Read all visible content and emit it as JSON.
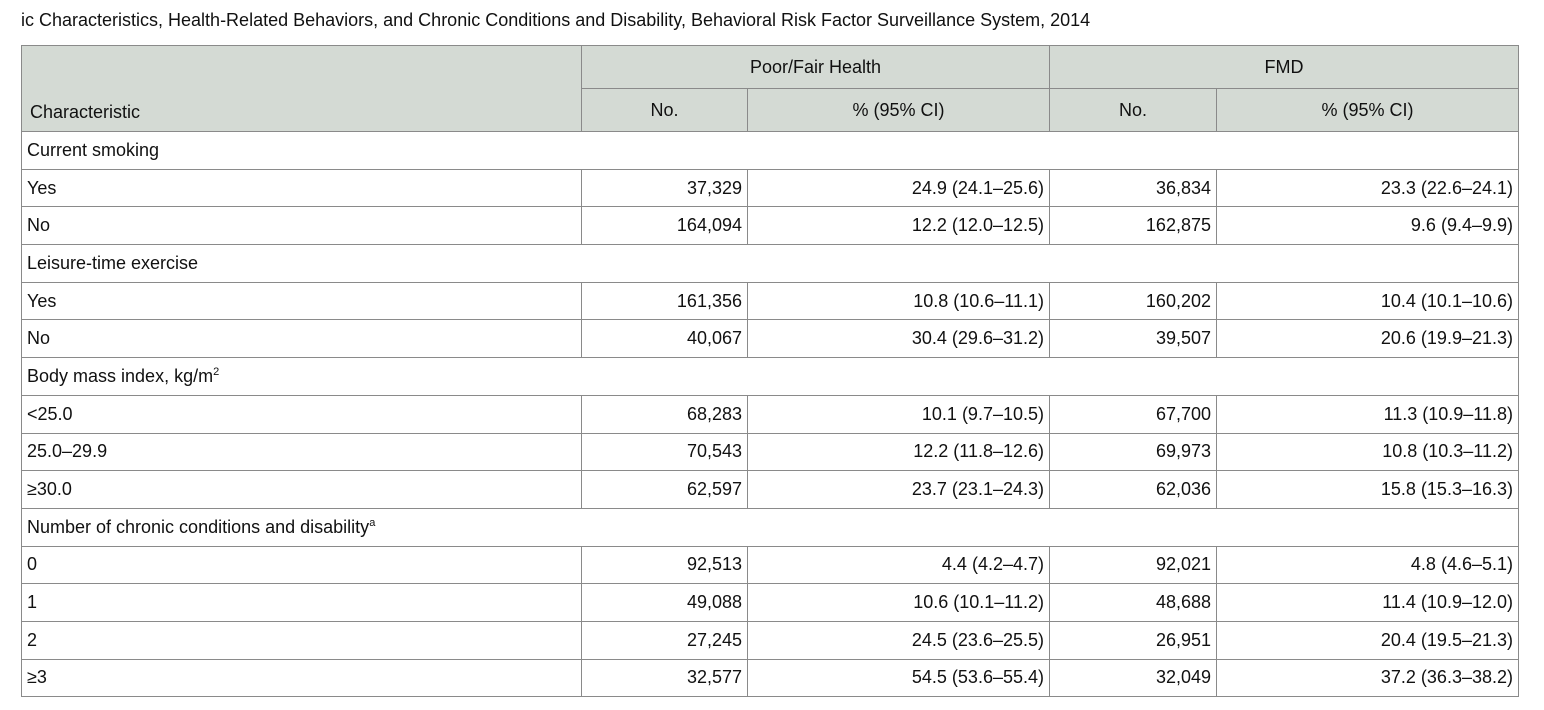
{
  "caption": "ic Characteristics, Health-Related Behaviors, and Chronic Conditions and Disability, Behavioral Risk Factor Surveillance System, 2014",
  "table": {
    "corner": "Characteristic",
    "groups": [
      "Poor/Fair Health",
      "FMD"
    ],
    "subheaders": [
      "No.",
      "% (95% CI)",
      "No.",
      "% (95% CI)"
    ],
    "sections": [
      {
        "label": "Current smoking",
        "rows": [
          [
            "Yes",
            "37,329",
            "24.9 (24.1–25.6)",
            "36,834",
            "23.3 (22.6–24.1)"
          ],
          [
            "No",
            "164,094",
            "12.2 (12.0–12.5)",
            "162,875",
            "9.6 (9.4–9.9)"
          ]
        ]
      },
      {
        "label": "Leisure-time exercise",
        "rows": [
          [
            "Yes",
            "161,356",
            "10.8 (10.6–11.1)",
            "160,202",
            "10.4 (10.1–10.6)"
          ],
          [
            "No",
            "40,067",
            "30.4 (29.6–31.2)",
            "39,507",
            "20.6 (19.9–21.3)"
          ]
        ]
      },
      {
        "label": "Body mass index, kg/m",
        "sup": "2",
        "rows": [
          [
            "<25.0",
            "68,283",
            "10.1 (9.7–10.5)",
            "67,700",
            "11.3 (10.9–11.8)"
          ],
          [
            "25.0–29.9",
            "70,543",
            "12.2 (11.8–12.6)",
            "69,973",
            "10.8 (10.3–11.2)"
          ],
          [
            "≥30.0",
            "62,597",
            "23.7 (23.1–24.3)",
            "62,036",
            "15.8 (15.3–16.3)"
          ]
        ]
      },
      {
        "label": "Number of chronic conditions and disability",
        "sup": "a",
        "rows": [
          [
            "0",
            "92,513",
            "4.4 (4.2–4.7)",
            "92,021",
            "4.8 (4.6–5.1)"
          ],
          [
            "1",
            "49,088",
            "10.6 (10.1–11.2)",
            "48,688",
            "11.4 (10.9–12.0)"
          ],
          [
            "2",
            "27,245",
            "24.5 (23.6–25.5)",
            "26,951",
            "20.4 (19.5–21.3)"
          ],
          [
            "≥3",
            "32,577",
            "54.5 (53.6–55.4)",
            "32,049",
            "37.2 (36.3–38.2)"
          ]
        ]
      }
    ]
  }
}
